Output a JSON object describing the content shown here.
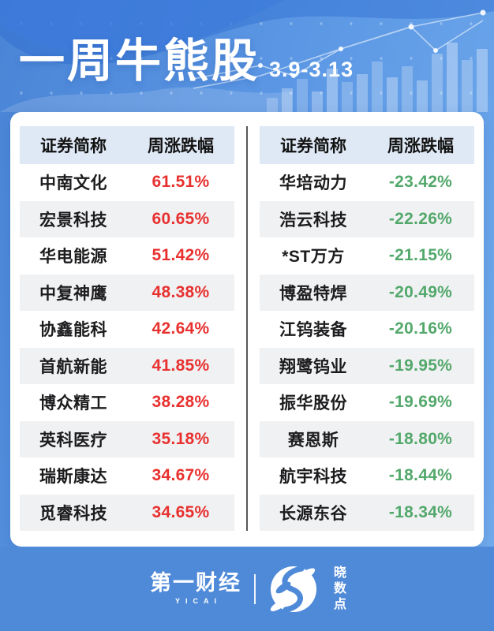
{
  "header": {
    "title": "一周牛熊股",
    "date_range": "3.9-3.13"
  },
  "tables": {
    "gainers": {
      "columns": [
        "证券简称",
        "周涨跌幅"
      ],
      "rows": [
        {
          "name": "中南文化",
          "change": "61.51%"
        },
        {
          "name": "宏景科技",
          "change": "60.65%"
        },
        {
          "name": "华电能源",
          "change": "51.42%"
        },
        {
          "name": "中复神鹰",
          "change": "48.38%"
        },
        {
          "name": "协鑫能科",
          "change": "42.64%"
        },
        {
          "name": "首航新能",
          "change": "41.85%"
        },
        {
          "name": "博众精工",
          "change": "38.28%"
        },
        {
          "name": "英科医疗",
          "change": "35.18%"
        },
        {
          "name": "瑞斯康达",
          "change": "34.67%"
        },
        {
          "name": "觅睿科技",
          "change": "34.65%"
        }
      ]
    },
    "losers": {
      "columns": [
        "证券简称",
        "周涨跌幅"
      ],
      "rows": [
        {
          "name": "华培动力",
          "change": "-23.42%"
        },
        {
          "name": "浩云科技",
          "change": "-22.26%"
        },
        {
          "name": "*ST万方",
          "change": "-21.15%"
        },
        {
          "name": "博盈特焊",
          "change": "-20.49%"
        },
        {
          "name": "江钨装备",
          "change": "-20.16%"
        },
        {
          "name": "翔鹭钨业",
          "change": "-19.95%"
        },
        {
          "name": "振华股份",
          "change": "-19.69%"
        },
        {
          "name": "赛恩斯",
          "change": "-18.80%"
        },
        {
          "name": "航宇科技",
          "change": "-18.44%"
        },
        {
          "name": "长源东谷",
          "change": "-18.34%"
        }
      ]
    }
  },
  "footer": {
    "left_logo_text": "第一财经",
    "left_logo_subtext": "YICAI",
    "right_logo_text": "晓数点"
  },
  "colors": {
    "up": "#e8312f",
    "down": "#53a86b",
    "background_blue": "#5b97e4",
    "footer_blue": "#4f8ad9",
    "table_header_bg": "#dfe9f5",
    "row_alt_bg": "#f0f1f3"
  },
  "chart_data": [
    {
      "type": "table",
      "title": "一周牛熊股 3.9-3.13 涨幅榜",
      "columns": [
        "证券简称",
        "周涨跌幅"
      ],
      "rows": [
        [
          "中南文化",
          "61.51%"
        ],
        [
          "宏景科技",
          "60.65%"
        ],
        [
          "华电能源",
          "51.42%"
        ],
        [
          "中复神鹰",
          "48.38%"
        ],
        [
          "协鑫能科",
          "42.64%"
        ],
        [
          "首航新能",
          "41.85%"
        ],
        [
          "博众精工",
          "38.28%"
        ],
        [
          "英科医疗",
          "35.18%"
        ],
        [
          "瑞斯康达",
          "34.67%"
        ],
        [
          "觅睿科技",
          "34.65%"
        ]
      ]
    },
    {
      "type": "table",
      "title": "一周牛熊股 3.9-3.13 跌幅榜",
      "columns": [
        "证券简称",
        "周涨跌幅"
      ],
      "rows": [
        [
          "华培动力",
          "-23.42%"
        ],
        [
          "浩云科技",
          "-22.26%"
        ],
        [
          "*ST万方",
          "-21.15%"
        ],
        [
          "博盈特焊",
          "-20.49%"
        ],
        [
          "江钨装备",
          "-20.16%"
        ],
        [
          "翔鹭钨业",
          "-19.95%"
        ],
        [
          "振华股份",
          "-19.69%"
        ],
        [
          "赛恩斯",
          "-18.80%"
        ],
        [
          "航宇科技",
          "-18.44%"
        ],
        [
          "长源东谷",
          "-18.34%"
        ]
      ]
    }
  ]
}
